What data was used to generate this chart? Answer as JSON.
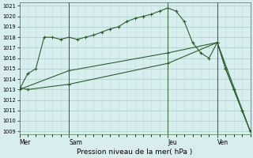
{
  "bg_color": "#d8eeee",
  "grid_major_color": "#a8cccc",
  "grid_minor_color": "#c0dddd",
  "line_color": "#2a5e2a",
  "marker_size": 3.5,
  "title": "Pression niveau de la mer( hPa )",
  "day_labels": [
    "Mer",
    "Sam",
    "Jeu",
    "Ven"
  ],
  "day_positions": [
    0,
    6,
    18,
    24
  ],
  "ylim_min": 1009,
  "ylim_max": 1021,
  "yticks": [
    1009,
    1010,
    1011,
    1012,
    1013,
    1014,
    1015,
    1016,
    1017,
    1018,
    1019,
    1020,
    1021
  ],
  "xlim_min": 0,
  "xlim_max": 28,
  "vlines": [
    6,
    18,
    24
  ],
  "line1_x": [
    0,
    1,
    2,
    3,
    4,
    5,
    6,
    7,
    8,
    9,
    10,
    11,
    12,
    13,
    14,
    15,
    16,
    17,
    18,
    19,
    20,
    21,
    22,
    23,
    24,
    25,
    26,
    27,
    28
  ],
  "line1_y": [
    1013.0,
    1014.5,
    1015.0,
    1018.0,
    1018.0,
    1017.8,
    1018.0,
    1017.8,
    1018.0,
    1018.2,
    1018.5,
    1018.8,
    1019.0,
    1019.5,
    1019.8,
    1020.0,
    1020.2,
    1020.5,
    1020.8,
    1020.5,
    1019.5,
    1017.5,
    1016.5,
    1016.0,
    1017.5,
    1015.0,
    1013.0,
    1011.0,
    1009.0
  ],
  "line2_x": [
    0,
    6,
    18,
    24,
    28
  ],
  "line2_y": [
    1013.0,
    1014.8,
    1016.5,
    1017.5,
    1009.0
  ],
  "line3_x": [
    0,
    1,
    6,
    18,
    24,
    25,
    26,
    27,
    28
  ],
  "line3_y": [
    1013.2,
    1013.0,
    1013.5,
    1015.5,
    1017.5,
    1015.0,
    1013.0,
    1011.0,
    1009.0
  ]
}
